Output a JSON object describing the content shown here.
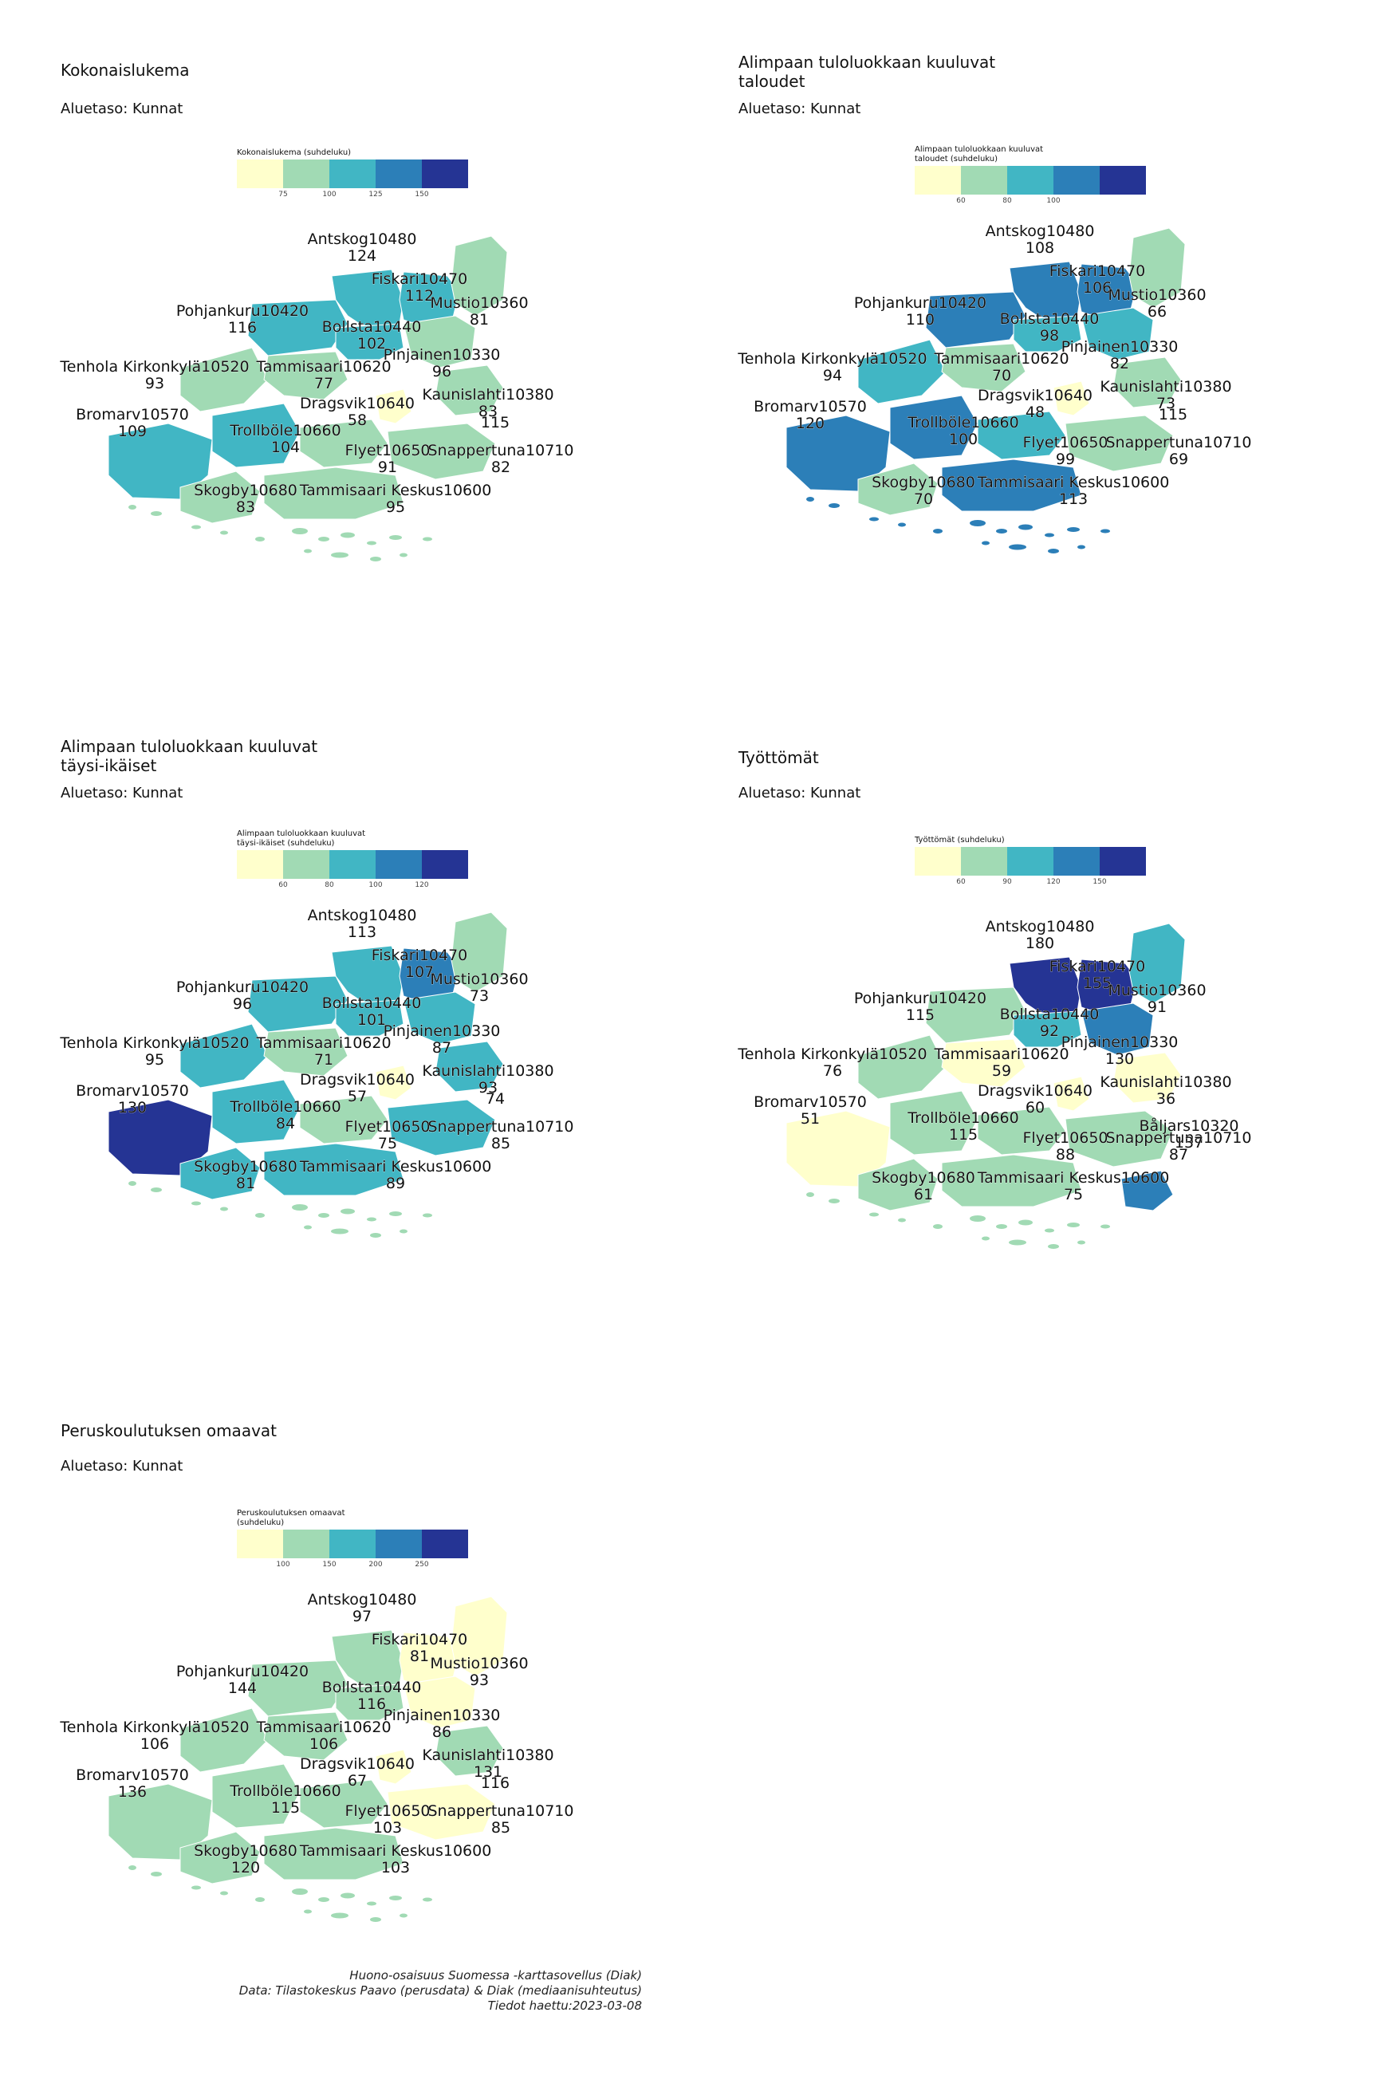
{
  "colors": {
    "kokonais": [
      "#ffffcc",
      "#a1dab4",
      "#41b6c4",
      "#2c7fb8",
      "#253494"
    ],
    "default": [
      "#ffffcc",
      "#a1dab4",
      "#41b6c4",
      "#2c7fb8",
      "#253494"
    ],
    "missing": "#888888"
  },
  "panels": [
    {
      "title": "Kokonaislukema",
      "subtitle": "Aluetaso: Kunnat",
      "legend_title": "Kokonaislukema (suhdeluku)",
      "legend_ticks": [
        "75",
        "100",
        "125",
        "150"
      ],
      "areas": [
        {
          "name": "Antskog10480",
          "value": "124",
          "cls": 2
        },
        {
          "name": "Fiskari10470",
          "value": "112",
          "cls": 2
        },
        {
          "name": "Mustio10360",
          "value": "81",
          "cls": 1
        },
        {
          "name": "Pohjankuru10420",
          "value": "116",
          "cls": 2
        },
        {
          "name": "Bollsta10440",
          "value": "102",
          "cls": 2
        },
        {
          "name": "Pinjainen10330",
          "value": "96",
          "cls": 1
        },
        {
          "name": "Tenhola Kirkonkylä10520",
          "value": "93",
          "cls": 1
        },
        {
          "name": "Tammisaari10620",
          "value": "77",
          "cls": 1
        },
        {
          "name": "Kaunislahti10380",
          "value": "83",
          "cls": 1
        },
        {
          "name": "Dragsvik10640",
          "value": "58",
          "cls": 0
        },
        {
          "name": "Bromarv10570",
          "value": "109",
          "cls": 2
        },
        {
          "name": "Trollböle10660",
          "value": "104",
          "cls": 2
        },
        {
          "name": "Flyet10650",
          "value": "91",
          "cls": 1
        },
        {
          "name": "Snappertuna10710",
          "value": "82",
          "cls": 1
        },
        {
          "name": "Skogby10680",
          "value": "83",
          "cls": 1
        },
        {
          "name": "Tammisaari Keskus10600",
          "value": "95",
          "cls": 1
        }
      ],
      "extra_value": "115"
    },
    {
      "title": "Alimpaan tuloluokkaan kuuluvat taloudet",
      "subtitle": "Aluetaso: Kunnat",
      "legend_title": "Alimpaan tuloluokkaan kuuluvat taloudet (suhdeluku)",
      "legend_ticks": [
        "60",
        "80",
        "100"
      ],
      "areas": [
        {
          "name": "Antskog10480",
          "value": "108",
          "cls": 3
        },
        {
          "name": "Fiskari10470",
          "value": "106",
          "cls": 3
        },
        {
          "name": "Mustio10360",
          "value": "66",
          "cls": 1
        },
        {
          "name": "Pohjankuru10420",
          "value": "110",
          "cls": 3
        },
        {
          "name": "Bollsta10440",
          "value": "98",
          "cls": 2
        },
        {
          "name": "Pinjainen10330",
          "value": "82",
          "cls": 2
        },
        {
          "name": "Tenhola Kirkonkylä10520",
          "value": "94",
          "cls": 2
        },
        {
          "name": "Tammisaari10620",
          "value": "70",
          "cls": 1
        },
        {
          "name": "Kaunislahti10380",
          "value": "73",
          "cls": 1
        },
        {
          "name": "Dragsvik10640",
          "value": "48",
          "cls": 0
        },
        {
          "name": "Bromarv10570",
          "value": "120",
          "cls": 3
        },
        {
          "name": "Trollböle10660",
          "value": "100",
          "cls": 3
        },
        {
          "name": "Flyet10650",
          "value": "99",
          "cls": 2
        },
        {
          "name": "Snappertuna10710",
          "value": "69",
          "cls": 1
        },
        {
          "name": "Skogby10680",
          "value": "70",
          "cls": 1
        },
        {
          "name": "Tammisaari Keskus10600",
          "value": "113",
          "cls": 3
        }
      ],
      "extra_value": "115"
    },
    {
      "title": "Alimpaan tuloluokkaan kuuluvat täysi-ikäiset",
      "subtitle": "Aluetaso: Kunnat",
      "legend_title": "Alimpaan tuloluokkaan kuuluvat täysi-ikäiset (suhdeluku)",
      "legend_ticks": [
        "60",
        "80",
        "100",
        "120"
      ],
      "areas": [
        {
          "name": "Antskog10480",
          "value": "113",
          "cls": 2
        },
        {
          "name": "Fiskari10470",
          "value": "107",
          "cls": 3
        },
        {
          "name": "Mustio10360",
          "value": "73",
          "cls": 1
        },
        {
          "name": "Pohjankuru10420",
          "value": "96",
          "cls": 2
        },
        {
          "name": "Bollsta10440",
          "value": "101",
          "cls": 2
        },
        {
          "name": "Pinjainen10330",
          "value": "87",
          "cls": 2
        },
        {
          "name": "Tenhola Kirkonkylä10520",
          "value": "95",
          "cls": 2
        },
        {
          "name": "Tammisaari10620",
          "value": "71",
          "cls": 1
        },
        {
          "name": "Kaunislahti10380",
          "value": "93",
          "cls": 2
        },
        {
          "name": "Dragsvik10640",
          "value": "57",
          "cls": 0
        },
        {
          "name": "Bromarv10570",
          "value": "130",
          "cls": 4
        },
        {
          "name": "Trollböle10660",
          "value": "84",
          "cls": 2
        },
        {
          "name": "Flyet10650",
          "value": "75",
          "cls": 1
        },
        {
          "name": "Snappertuna10710",
          "value": "85",
          "cls": 2
        },
        {
          "name": "Skogby10680",
          "value": "81",
          "cls": 2
        },
        {
          "name": "Tammisaari Keskus10600",
          "value": "89",
          "cls": 2
        }
      ],
      "extra_value": "74"
    },
    {
      "title": "Työttömät",
      "subtitle": "Aluetaso: Kunnat",
      "legend_title": "Työttömät (suhdeluku)",
      "legend_ticks": [
        "60",
        "90",
        "120",
        "150"
      ],
      "areas": [
        {
          "name": "Antskog10480",
          "value": "180",
          "cls": 4
        },
        {
          "name": "Fiskari10470",
          "value": "155",
          "cls": 4
        },
        {
          "name": "Mustio10360",
          "value": "91",
          "cls": 2
        },
        {
          "name": "Pohjankuru10420",
          "value": "115",
          "cls": 1
        },
        {
          "name": "Bollsta10440",
          "value": "92",
          "cls": 2
        },
        {
          "name": "Pinjainen10330",
          "value": "130",
          "cls": 3
        },
        {
          "name": "Tenhola Kirkonkylä10520",
          "value": "76",
          "cls": 1
        },
        {
          "name": "Tammisaari10620",
          "value": "59",
          "cls": 0
        },
        {
          "name": "Kaunislahti10380",
          "value": "36",
          "cls": 0
        },
        {
          "name": "Dragsvik10640",
          "value": "60",
          "cls": 0
        },
        {
          "name": "Bromarv10570",
          "value": "51",
          "cls": 0
        },
        {
          "name": "Trollböle10660",
          "value": "115",
          "cls": 1
        },
        {
          "name": "Flyet10650",
          "value": "88",
          "cls": 1
        },
        {
          "name": "Snappertuna10710",
          "value": "87",
          "cls": 1
        },
        {
          "name": "Skogby10680",
          "value": "61",
          "cls": 1
        },
        {
          "name": "Tammisaari Keskus10600",
          "value": "75",
          "cls": 1
        },
        {
          "name": "Båljars10320",
          "value": "137",
          "cls": 3
        }
      ]
    },
    {
      "title": "Peruskoulutuksen omaavat",
      "subtitle": "Aluetaso: Kunnat",
      "legend_title": "Peruskoulutuksen omaavat (suhdeluku)",
      "legend_ticks": [
        "100",
        "150",
        "200",
        "250"
      ],
      "areas": [
        {
          "name": "Antskog10480",
          "value": "97",
          "cls": 1
        },
        {
          "name": "Fiskari10470",
          "value": "81",
          "cls": 0
        },
        {
          "name": "Mustio10360",
          "value": "93",
          "cls": 0
        },
        {
          "name": "Pohjankuru10420",
          "value": "144",
          "cls": 1
        },
        {
          "name": "Bollsta10440",
          "value": "116",
          "cls": 1
        },
        {
          "name": "Pinjainen10330",
          "value": "86",
          "cls": 0
        },
        {
          "name": "Tenhola Kirkonkylä10520",
          "value": "106",
          "cls": 1
        },
        {
          "name": "Tammisaari10620",
          "value": "106",
          "cls": 1
        },
        {
          "name": "Kaunislahti10380",
          "value": "131",
          "cls": 1
        },
        {
          "name": "Dragsvik10640",
          "value": "67",
          "cls": 0
        },
        {
          "name": "Bromarv10570",
          "value": "136",
          "cls": 1
        },
        {
          "name": "Trollböle10660",
          "value": "115",
          "cls": 1
        },
        {
          "name": "Flyet10650",
          "value": "103",
          "cls": 1
        },
        {
          "name": "Snappertuna10710",
          "value": "85",
          "cls": 0
        },
        {
          "name": "Skogby10680",
          "value": "120",
          "cls": 1
        },
        {
          "name": "Tammisaari Keskus10600",
          "value": "103",
          "cls": 1
        }
      ],
      "extra_value": "116"
    }
  ],
  "credit": {
    "line1": "Huono-osaisuus Suomessa -karttasovellus (Diak)",
    "line2": "Data: Tilastokeskus Paavo (perusdata) & Diak (mediaanisuhteutus)",
    "line3": "Tiedot haettu:2023-03-08"
  }
}
